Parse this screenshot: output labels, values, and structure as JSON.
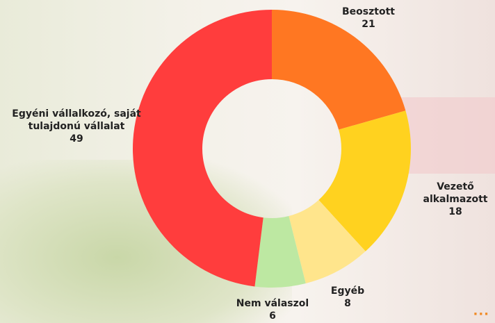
{
  "chart_data": {
    "type": "donut",
    "categories": [
      "Beosztott",
      "Vezető alkalmazott",
      "Egyéb",
      "Nem válaszol",
      "Egyéni vállalkozó, saját tulajdonú vállalat"
    ],
    "values": [
      21,
      18,
      8,
      6,
      49
    ],
    "colors": [
      "#ff7722",
      "#ffd21f",
      "#ffe58c",
      "#bde8a2",
      "#ff3d3d"
    ]
  }
}
